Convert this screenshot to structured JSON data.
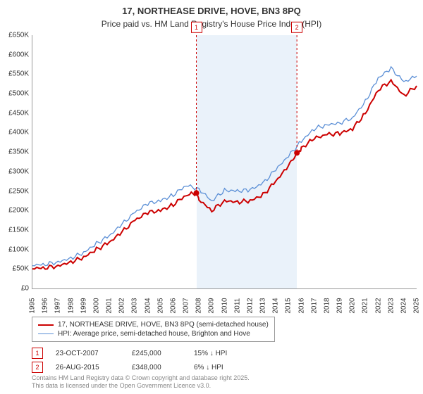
{
  "title_line1": "17, NORTHEASE DRIVE, HOVE, BN3 8PQ",
  "title_line2": "Price paid vs. HM Land Registry's House Price Index (HPI)",
  "chart": {
    "type": "line",
    "x_years": [
      1995,
      1996,
      1997,
      1998,
      1999,
      2000,
      2001,
      2002,
      2003,
      2004,
      2005,
      2006,
      2007,
      2008,
      2009,
      2010,
      2011,
      2012,
      2013,
      2014,
      2015,
      2016,
      2017,
      2018,
      2019,
      2020,
      2021,
      2022,
      2023,
      2024,
      2025
    ],
    "ylim": [
      0,
      650000
    ],
    "ytick_step": 50000,
    "ytick_labels": [
      "£0",
      "£50K",
      "£100K",
      "£150K",
      "£200K",
      "£250K",
      "£300K",
      "£350K",
      "£400K",
      "£450K",
      "£500K",
      "£550K",
      "£600K",
      "£650K"
    ],
    "series": [
      {
        "name": "property",
        "label": "17, NORTHEASE DRIVE, HOVE, BN3 8PQ (semi-detached house)",
        "color": "#cc0000",
        "width": 2,
        "points": [
          [
            1995,
            52000
          ],
          [
            1996,
            53000
          ],
          [
            1997,
            58000
          ],
          [
            1998,
            68000
          ],
          [
            1999,
            80000
          ],
          [
            2000,
            100000
          ],
          [
            2001,
            118000
          ],
          [
            2002,
            145000
          ],
          [
            2003,
            175000
          ],
          [
            2004,
            195000
          ],
          [
            2005,
            200000
          ],
          [
            2006,
            215000
          ],
          [
            2007,
            240000
          ],
          [
            2007.8,
            245000
          ],
          [
            2008,
            228000
          ],
          [
            2009,
            200000
          ],
          [
            2010,
            225000
          ],
          [
            2011,
            222000
          ],
          [
            2012,
            225000
          ],
          [
            2013,
            240000
          ],
          [
            2014,
            275000
          ],
          [
            2015,
            315000
          ],
          [
            2015.65,
            348000
          ],
          [
            2016,
            360000
          ],
          [
            2017,
            385000
          ],
          [
            2018,
            395000
          ],
          [
            2019,
            398000
          ],
          [
            2020,
            410000
          ],
          [
            2021,
            450000
          ],
          [
            2022,
            510000
          ],
          [
            2023,
            533000
          ],
          [
            2024,
            495000
          ],
          [
            2025,
            520000
          ]
        ]
      },
      {
        "name": "hpi",
        "label": "HPI: Average price, semi-detached house, Brighton and Hove",
        "color": "#5b8fd6",
        "width": 1.3,
        "points": [
          [
            1995,
            60000
          ],
          [
            1996,
            62000
          ],
          [
            1997,
            68000
          ],
          [
            1998,
            78000
          ],
          [
            1999,
            92000
          ],
          [
            2000,
            115000
          ],
          [
            2001,
            135000
          ],
          [
            2002,
            165000
          ],
          [
            2003,
            195000
          ],
          [
            2004,
            218000
          ],
          [
            2005,
            225000
          ],
          [
            2006,
            240000
          ],
          [
            2007,
            265000
          ],
          [
            2008,
            255000
          ],
          [
            2009,
            225000
          ],
          [
            2010,
            252000
          ],
          [
            2011,
            250000
          ],
          [
            2012,
            253000
          ],
          [
            2013,
            270000
          ],
          [
            2014,
            305000
          ],
          [
            2015,
            340000
          ],
          [
            2016,
            378000
          ],
          [
            2017,
            410000
          ],
          [
            2018,
            420000
          ],
          [
            2019,
            425000
          ],
          [
            2020,
            438000
          ],
          [
            2021,
            480000
          ],
          [
            2022,
            540000
          ],
          [
            2023,
            565000
          ],
          [
            2024,
            530000
          ],
          [
            2025,
            545000
          ]
        ]
      }
    ],
    "highlight_band": {
      "x_start": 2007.8,
      "x_end": 2015.65,
      "color": "#eaf2fa"
    },
    "sale_markers": [
      {
        "num": "1",
        "x": 2007.8,
        "border": "#cc0000"
      },
      {
        "num": "2",
        "x": 2015.65,
        "border": "#cc0000"
      }
    ],
    "grid_color": "#e0e0e0",
    "background_color": "#ffffff"
  },
  "sales": [
    {
      "num": "1",
      "border": "#cc0000",
      "date": "23-OCT-2007",
      "price": "£245,000",
      "diff": "15% ↓ HPI"
    },
    {
      "num": "2",
      "border": "#cc0000",
      "date": "26-AUG-2015",
      "price": "£348,000",
      "diff": "6% ↓ HPI"
    }
  ],
  "footer_line1": "Contains HM Land Registry data © Crown copyright and database right 2025.",
  "footer_line2": "This data is licensed under the Open Government Licence v3.0."
}
